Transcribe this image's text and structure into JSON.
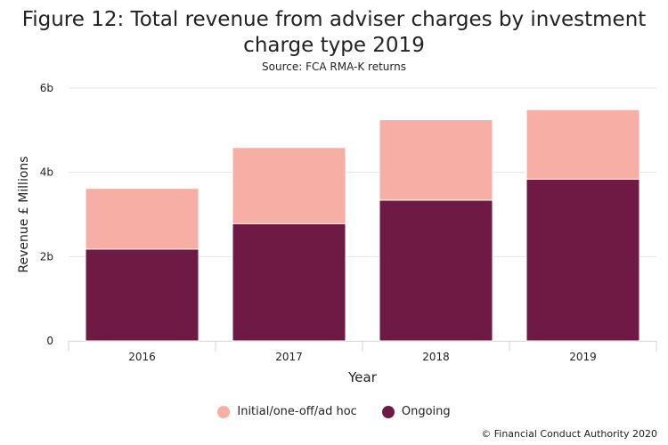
{
  "chart_data": {
    "type": "bar",
    "stacked": true,
    "title": "Figure 12: Total revenue from adviser charges by investment charge type 2019",
    "subtitle": "Source: FCA RMA-K returns",
    "xlabel": "Year",
    "ylabel": "Revenue £ Millions",
    "categories": [
      "2016",
      "2017",
      "2018",
      "2019"
    ],
    "ylim": [
      0,
      6
    ],
    "yticks": [
      {
        "v": 0,
        "label": "0"
      },
      {
        "v": 2,
        "label": "2b"
      },
      {
        "v": 4,
        "label": "4b"
      },
      {
        "v": 6,
        "label": "6b"
      }
    ],
    "grid": true,
    "legend_position": "bottom",
    "series": [
      {
        "name": "Ongoing",
        "color": "#6e1a45",
        "values": [
          2.18,
          2.78,
          3.34,
          3.84
        ]
      },
      {
        "name": "Initial/one-off/ad hoc",
        "color": "#f7aea5",
        "values": [
          1.44,
          1.81,
          1.91,
          1.65
        ]
      }
    ],
    "legend_order": [
      "Initial/one-off/ad hoc",
      "Ongoing"
    ]
  },
  "credit": "© Financial Conduct Authority 2020"
}
